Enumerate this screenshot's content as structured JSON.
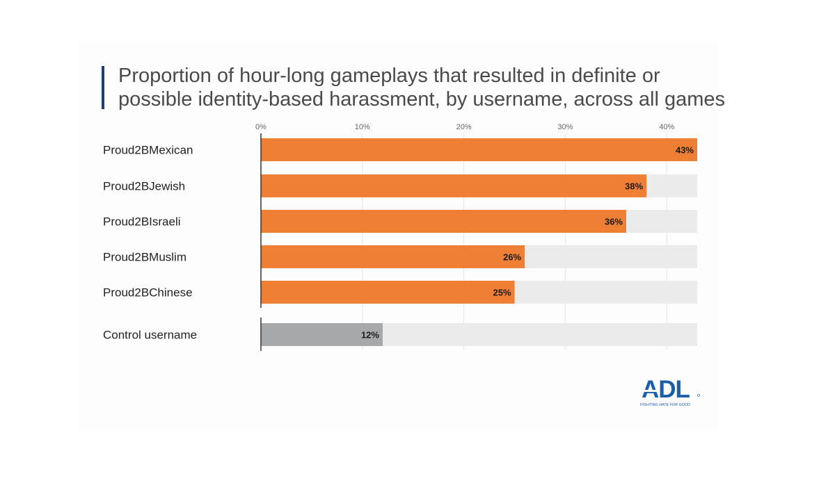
{
  "chart_data": {
    "type": "bar",
    "orientation": "horizontal",
    "title_lines": [
      "Proportion of hour-long gameplays that resulted in definite or",
      "possible identity-based harassment, by username, across all games"
    ],
    "categories": [
      "Proud2BMexican",
      "Proud2BJewish",
      "Proud2BIsraeli",
      "Proud2BMuslim",
      "Proud2BChinese",
      "Control username"
    ],
    "values": [
      43,
      38,
      36,
      26,
      25,
      12
    ],
    "value_labels": [
      "43%",
      "38%",
      "36%",
      "26%",
      "25%",
      "12%"
    ],
    "xlim": [
      0,
      43
    ],
    "x_ticks": [
      0,
      10,
      20,
      30,
      40
    ],
    "x_tick_labels": [
      "0%",
      "10%",
      "20%",
      "30%",
      "40%"
    ],
    "grid": true,
    "colors": {
      "primary_bar": "#f07f36",
      "control_bar": "#a7a8aa",
      "track": "#ebebeb",
      "title_accent": "#1b3f7a"
    }
  },
  "logo": {
    "text": "ADL",
    "tagline": "FIGHTING HATE FOR GOOD",
    "color": "#1b5fa8"
  }
}
